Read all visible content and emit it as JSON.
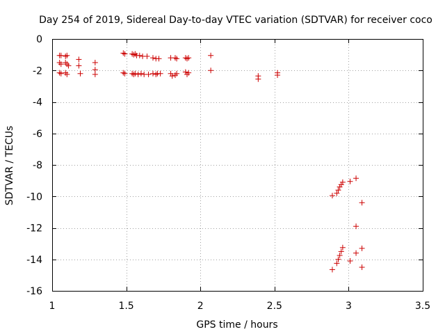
{
  "chart_data": {
    "type": "scatter",
    "title": "Day 254 of 2019, Sidereal Day-to-day VTEC variation (SDTVAR) for receiver coco",
    "xlabel": "GPS time / hours",
    "ylabel": "SDTVAR / TECUs",
    "xlim": [
      1,
      3.5
    ],
    "ylim": [
      -16,
      0
    ],
    "xticks": [
      1,
      1.5,
      2,
      2.5,
      3,
      3.5
    ],
    "xtick_labels": [
      "1",
      "1.5",
      "2",
      "2.5",
      "3",
      "3.5"
    ],
    "yticks": [
      0,
      -2,
      -4,
      -6,
      -8,
      -10,
      -12,
      -14,
      -16
    ],
    "ytick_labels": [
      "0",
      "-2",
      "-4",
      "-6",
      "-8",
      "-10",
      "-12",
      "-14",
      "-16"
    ],
    "grid": true,
    "marker": "+",
    "marker_color": "#cc0000",
    "series": [
      {
        "name": "SDTVAR",
        "points": [
          [
            1.05,
            -1.05
          ],
          [
            1.06,
            -1.05
          ],
          [
            1.05,
            -1.5
          ],
          [
            1.06,
            -1.6
          ],
          [
            1.05,
            -2.15
          ],
          [
            1.06,
            -2.2
          ],
          [
            1.09,
            -1.1
          ],
          [
            1.1,
            -1.05
          ],
          [
            1.09,
            -1.5
          ],
          [
            1.1,
            -1.6
          ],
          [
            1.09,
            -2.15
          ],
          [
            1.1,
            -2.25
          ],
          [
            1.11,
            -1.7
          ],
          [
            1.18,
            -1.3
          ],
          [
            1.18,
            -1.7
          ],
          [
            1.19,
            -2.2
          ],
          [
            1.29,
            -1.5
          ],
          [
            1.29,
            -1.95
          ],
          [
            1.29,
            -2.25
          ],
          [
            1.48,
            -0.9
          ],
          [
            1.49,
            -0.95
          ],
          [
            1.48,
            -2.15
          ],
          [
            1.49,
            -2.2
          ],
          [
            1.54,
            -0.95
          ],
          [
            1.55,
            -1.0
          ],
          [
            1.56,
            -0.95
          ],
          [
            1.57,
            -1.05
          ],
          [
            1.59,
            -1.05
          ],
          [
            1.61,
            -1.1
          ],
          [
            1.64,
            -1.1
          ],
          [
            1.54,
            -2.2
          ],
          [
            1.55,
            -2.25
          ],
          [
            1.56,
            -2.2
          ],
          [
            1.58,
            -2.25
          ],
          [
            1.6,
            -2.2
          ],
          [
            1.62,
            -2.25
          ],
          [
            1.65,
            -2.25
          ],
          [
            1.68,
            -1.2
          ],
          [
            1.7,
            -1.25
          ],
          [
            1.72,
            -1.25
          ],
          [
            1.68,
            -2.2
          ],
          [
            1.7,
            -2.25
          ],
          [
            1.71,
            -2.2
          ],
          [
            1.73,
            -2.2
          ],
          [
            1.8,
            -1.2
          ],
          [
            1.83,
            -1.2
          ],
          [
            1.84,
            -1.25
          ],
          [
            1.8,
            -2.2
          ],
          [
            1.81,
            -2.35
          ],
          [
            1.83,
            -2.3
          ],
          [
            1.84,
            -2.2
          ],
          [
            1.9,
            -1.2
          ],
          [
            1.91,
            -1.25
          ],
          [
            1.92,
            -1.2
          ],
          [
            1.9,
            -2.1
          ],
          [
            1.91,
            -2.25
          ],
          [
            1.92,
            -2.15
          ],
          [
            2.07,
            -1.05
          ],
          [
            2.07,
            -2.0
          ],
          [
            2.39,
            -2.35
          ],
          [
            2.39,
            -2.55
          ],
          [
            2.52,
            -2.15
          ],
          [
            2.52,
            -2.3
          ],
          [
            2.89,
            -9.95
          ],
          [
            2.92,
            -9.8
          ],
          [
            2.93,
            -9.6
          ],
          [
            2.94,
            -9.4
          ],
          [
            2.95,
            -9.25
          ],
          [
            2.96,
            -9.1
          ],
          [
            3.01,
            -9.05
          ],
          [
            3.05,
            -8.85
          ],
          [
            3.05,
            -11.9
          ],
          [
            3.09,
            -10.4
          ],
          [
            2.89,
            -14.65
          ],
          [
            2.92,
            -14.25
          ],
          [
            2.93,
            -14.0
          ],
          [
            2.94,
            -13.75
          ],
          [
            2.95,
            -13.5
          ],
          [
            2.96,
            -13.25
          ],
          [
            3.01,
            -14.1
          ],
          [
            3.05,
            -13.6
          ],
          [
            3.09,
            -13.3
          ],
          [
            3.09,
            -14.5
          ]
        ]
      }
    ]
  }
}
